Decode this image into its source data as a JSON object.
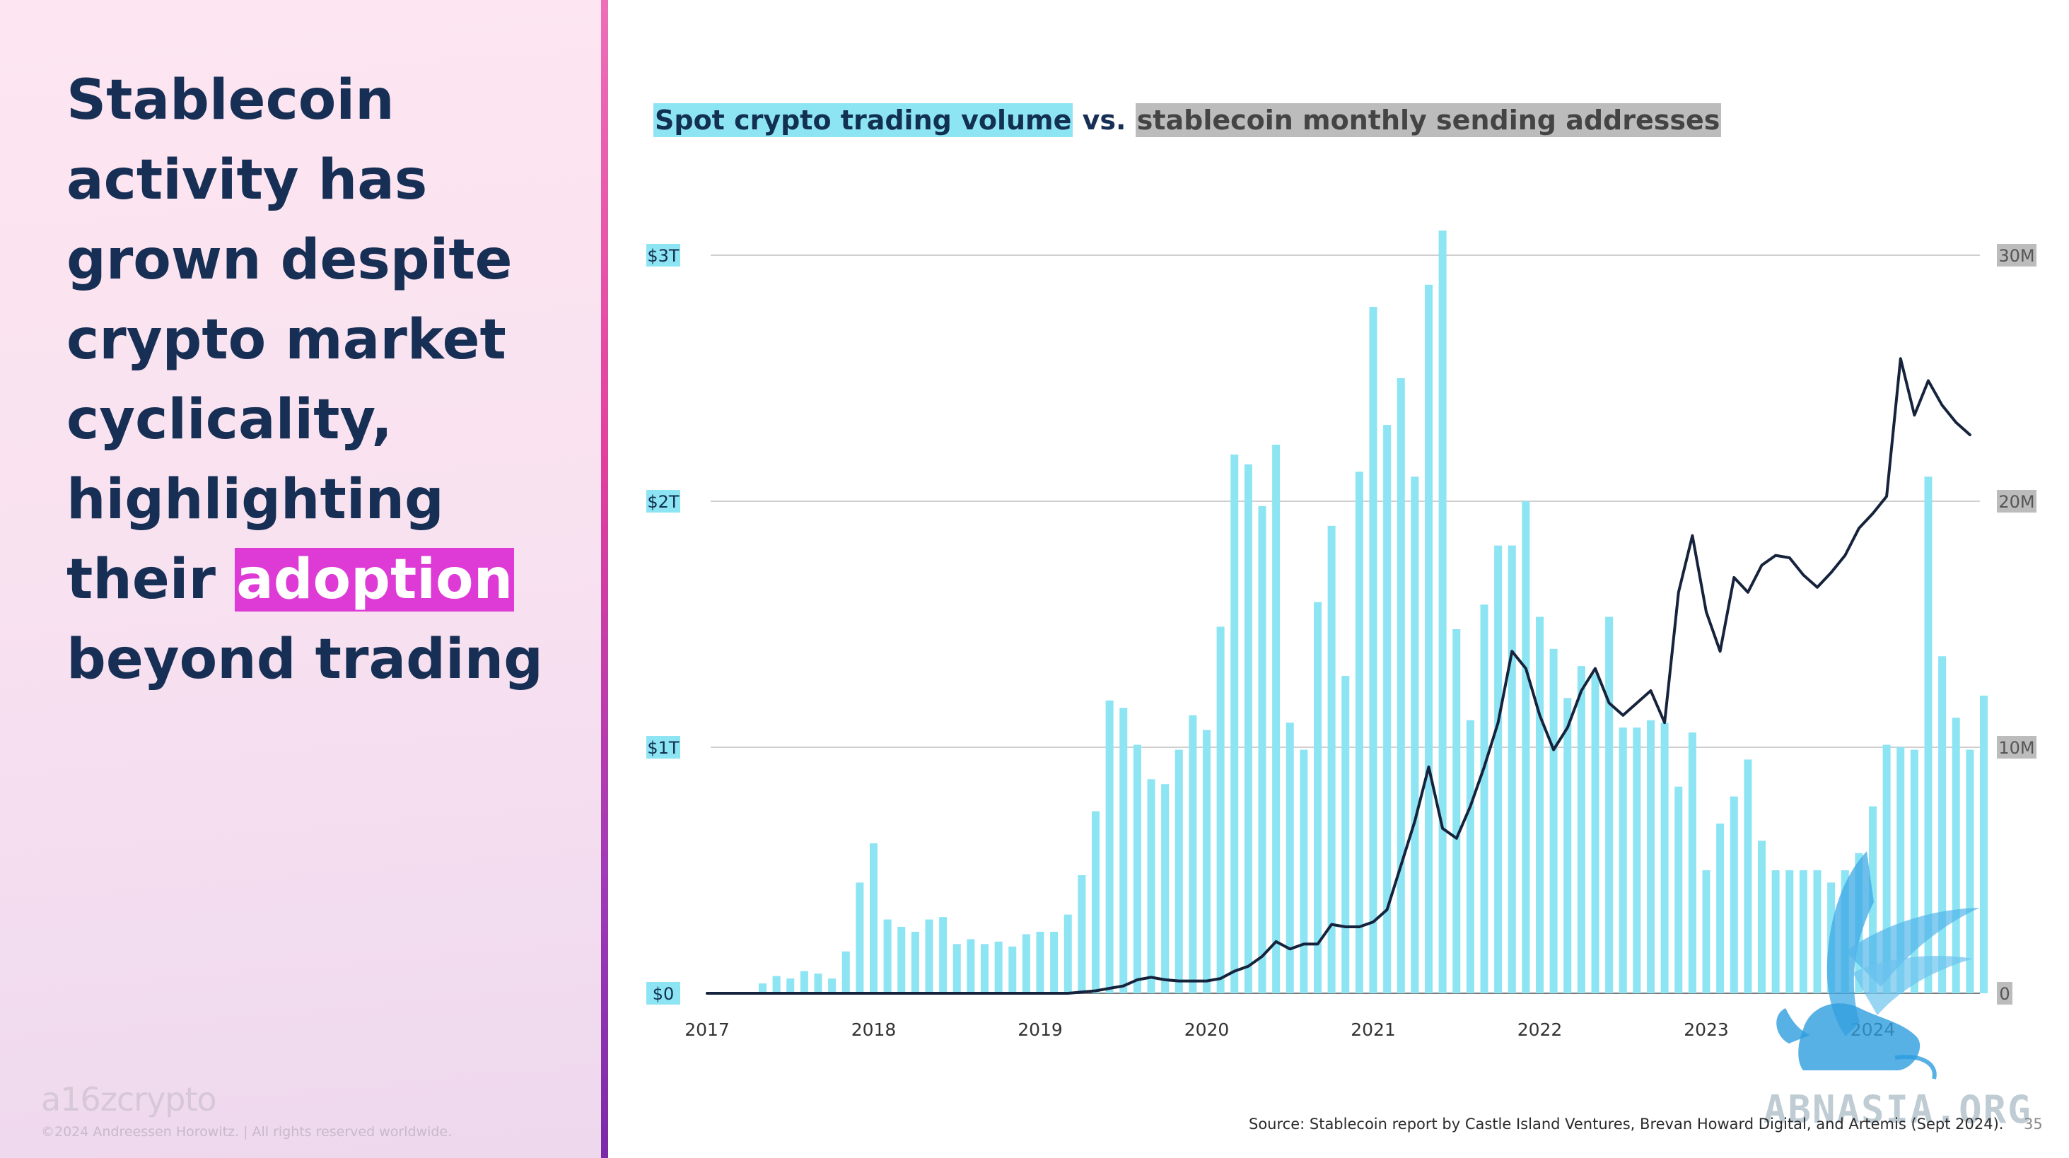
{
  "headline": {
    "lines": [
      "Stablecoin",
      "activity has",
      "grown despite",
      "crypto market",
      "cyclicality,",
      "highlighting"
    ],
    "line7_prefix": "their ",
    "line7_highlight": "adoption",
    "line8": "beyond trading"
  },
  "footer": {
    "logo": "a16zcrypto",
    "copyright": "©2024 Andreessen Horowitz. |  All rights reserved worldwide.",
    "source": "Source: Stablecoin report by Castle Island Ventures, Brevan Howard Digital, and Artemis (Sept 2024).",
    "page_number": "35"
  },
  "watermark": {
    "text": "ABNASIA.ORG",
    "emblem_icon": "griffin-icon"
  },
  "colors": {
    "navy": "#172f55",
    "bar_cyan": "#8de4f3",
    "line_navy": "#16233c",
    "highlight_magenta": "#de3ad6",
    "label_gray": "#bcbcbc"
  },
  "chart_data": {
    "type": "bar+line",
    "title": {
      "part1": "Spot crypto trading volume",
      "part2": " vs. ",
      "part3": "stablecoin monthly sending addresses"
    },
    "x_start": "2017-01",
    "x_ticks": [
      "2017",
      "2018",
      "2019",
      "2020",
      "2021",
      "2022",
      "2023",
      "2024"
    ],
    "y_left": {
      "ticks": [
        "$0",
        "$1T",
        "$2T",
        "$3T"
      ],
      "range_trillions": [
        0,
        3
      ]
    },
    "y_right": {
      "ticks": [
        "0",
        "10M",
        "20M",
        "30M"
      ],
      "range_millions": [
        0,
        30
      ]
    },
    "grid": true,
    "series": [
      {
        "kind": "bar",
        "axis": "left",
        "unit": "trillions USD",
        "values": [
          0.0,
          0.0,
          0.0,
          0.0,
          0.04,
          0.07,
          0.06,
          0.09,
          0.08,
          0.06,
          0.17,
          0.45,
          0.61,
          0.3,
          0.27,
          0.25,
          0.3,
          0.31,
          0.2,
          0.22,
          0.2,
          0.21,
          0.19,
          0.24,
          0.25,
          0.25,
          0.32,
          0.48,
          0.74,
          1.19,
          1.16,
          1.01,
          0.87,
          0.85,
          0.99,
          1.13,
          1.07,
          1.49,
          2.19,
          2.15,
          1.98,
          2.23,
          1.1,
          0.99,
          1.59,
          1.9,
          1.29,
          2.12,
          2.79,
          2.31,
          2.5,
          2.1,
          2.88,
          3.1,
          1.48,
          1.11,
          1.58,
          1.82,
          1.82,
          2.0,
          1.53,
          1.4,
          1.2,
          1.33,
          1.3,
          1.53,
          1.08,
          1.08,
          1.11,
          1.1,
          0.84,
          1.06,
          0.5,
          0.69,
          0.8,
          0.95,
          0.62,
          0.5,
          0.5,
          0.5,
          0.5,
          0.45,
          0.5,
          0.57,
          0.76,
          1.01,
          1.0,
          0.99,
          2.1,
          1.37,
          1.12,
          0.99,
          1.21
        ]
      },
      {
        "kind": "line",
        "axis": "right",
        "unit": "millions of addresses",
        "values": [
          0.0,
          0.0,
          0.0,
          0.0,
          0.0,
          0.0,
          0.0,
          0.0,
          0.0,
          0.0,
          0.0,
          0.0,
          0.0,
          0.0,
          0.0,
          0.0,
          0.0,
          0.0,
          0.0,
          0.0,
          0.0,
          0.0,
          0.0,
          0.0,
          0.0,
          0.0,
          0.0,
          0.05,
          0.1,
          0.2,
          0.3,
          0.55,
          0.65,
          0.55,
          0.5,
          0.5,
          0.5,
          0.6,
          0.9,
          1.1,
          1.5,
          2.1,
          1.8,
          2.0,
          2.0,
          2.8,
          2.7,
          2.7,
          2.9,
          3.4,
          5.2,
          7.0,
          9.2,
          6.7,
          6.3,
          7.6,
          9.2,
          11.0,
          13.9,
          13.2,
          11.3,
          9.9,
          10.8,
          12.3,
          13.2,
          11.8,
          11.3,
          11.8,
          12.3,
          11.0,
          16.3,
          18.6,
          15.5,
          13.9,
          16.9,
          16.3,
          17.4,
          17.8,
          17.7,
          17.0,
          16.5,
          17.1,
          17.8,
          18.9,
          19.5,
          20.2,
          25.8,
          23.5,
          24.9,
          23.9,
          23.2,
          22.7
        ]
      }
    ]
  }
}
